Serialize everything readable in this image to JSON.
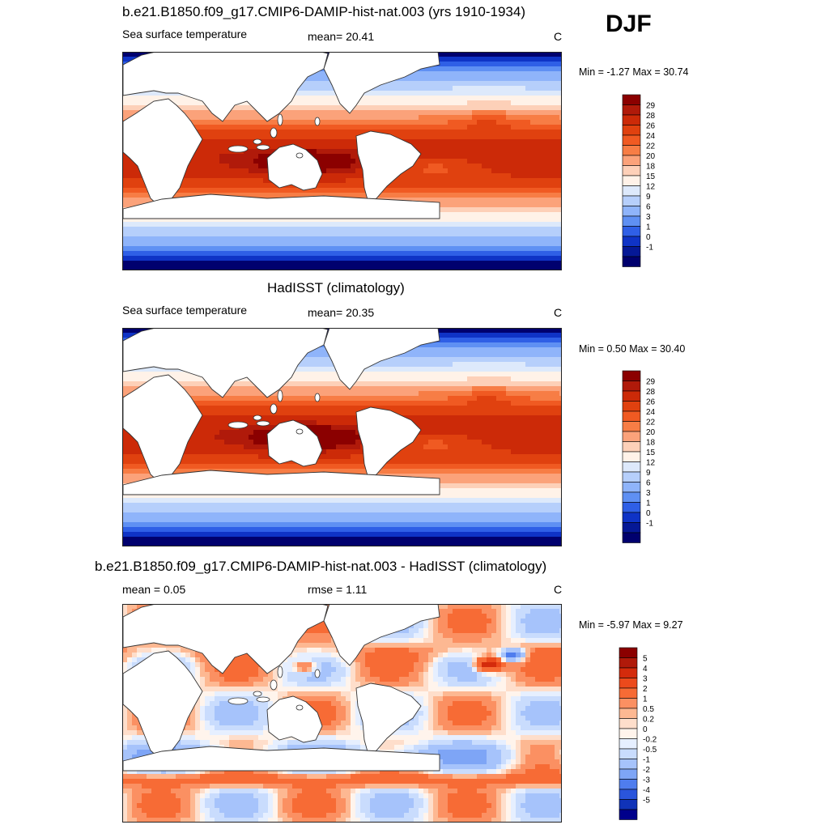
{
  "season": "DJF",
  "panels": [
    {
      "title": "b.e21.B1850.f09_g17.CMIP6-DAMIP-hist-nat.003 (yrs 1910-1934)",
      "left_label": "Sea surface temperature",
      "center_label": "mean=  20.41",
      "unit": "C",
      "min_max": "Min =  -1.27 Max =  30.74",
      "field": "model",
      "colorbar_labels": [
        "29",
        "28",
        "26",
        "24",
        "22",
        "20",
        "18",
        "15",
        "12",
        "9",
        "6",
        "3",
        "1",
        "0",
        "-1"
      ]
    },
    {
      "title": "HadISST (climatology)",
      "left_label": "Sea surface temperature",
      "center_label": "mean=  20.35",
      "unit": "C",
      "min_max": "Min =   0.50 Max =  30.40",
      "field": "obs",
      "colorbar_labels": [
        "29",
        "28",
        "26",
        "24",
        "22",
        "20",
        "18",
        "15",
        "12",
        "9",
        "6",
        "3",
        "1",
        "0",
        "-1"
      ]
    },
    {
      "title": "b.e21.B1850.f09_g17.CMIP6-DAMIP-hist-nat.003 - HadISST (climatology)",
      "left_label": "mean =   0.05",
      "center_label": "rmse =   1.11",
      "unit": "C",
      "min_max": "Min =  -5.97 Max =   9.27",
      "field": "diff",
      "colorbar_labels": [
        "5",
        "4",
        "3",
        "2",
        "1",
        "0.5",
        "0.2",
        "0",
        "-0.2",
        "-0.5",
        "-1",
        "-2",
        "-3",
        "-4",
        "-5"
      ]
    }
  ],
  "colors": {
    "sst_palette": [
      "#8b0000",
      "#b01a0a",
      "#cc2a08",
      "#e0410f",
      "#f05a22",
      "#f77d45",
      "#fba27a",
      "#fdd0b8",
      "#fff2e8",
      "#dde9fb",
      "#b6cffb",
      "#8fb4fa",
      "#5f90f3",
      "#2f5fe6",
      "#0f33c6",
      "#051896",
      "#00006e"
    ],
    "diff_palette": [
      "#8b0000",
      "#b01a0a",
      "#d42b0c",
      "#ec4a1c",
      "#f76b35",
      "#fb9062",
      "#fdb892",
      "#fedecb",
      "#fff4ec",
      "#e6efff",
      "#c9dcfd",
      "#a6c3fb",
      "#7ea5f6",
      "#4f7dee",
      "#2a55dc",
      "#1033b8",
      "#00008b"
    ]
  }
}
